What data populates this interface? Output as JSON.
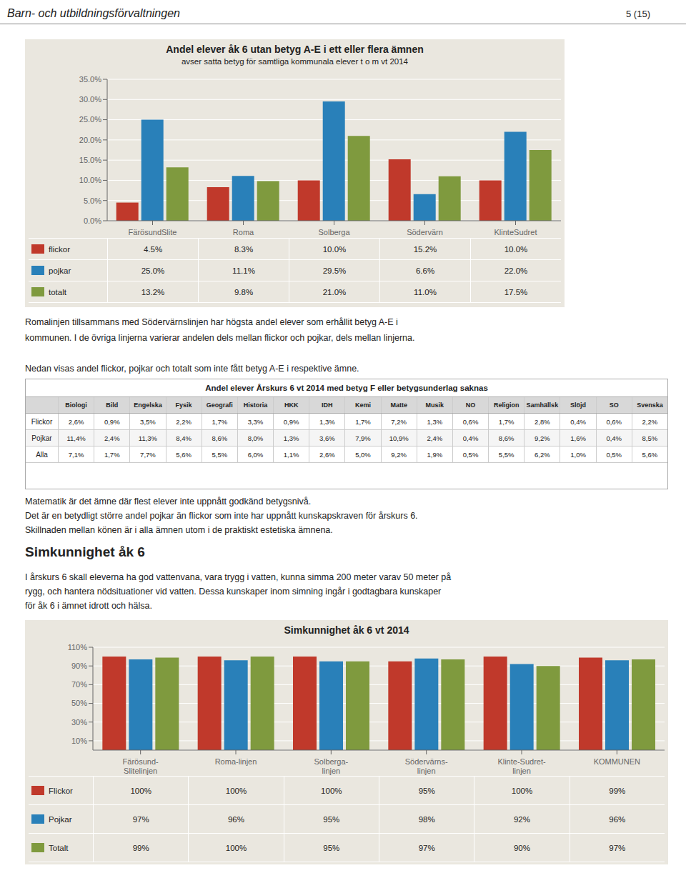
{
  "page_title": "Barn- och utbildningsförvaltningen",
  "page_number": "5 (15)",
  "text1": [
    "Romalinjen tillsammans med Södervärnslinjen har högsta andel elever som erhållit betyg A-E i",
    "kommunen. I de övriga linjerna varierar andelen dels mellan flickor och pojkar, dels mellan linjerna."
  ],
  "text2": [
    "Nedan visas andel flickor, pojkar och totalt som inte fått betyg A-E i respektive ämne."
  ],
  "text3": [
    "Matematik är det ämne där flest elever inte uppnått godkänd betygsnivå.",
    "Det är en betydligt större andel pojkar än flickor som inte har uppnått kunskapskraven för årskurs 6.",
    "Skillnaden mellan könen är i alla ämnen utom i de praktiskt estetiska ämnena."
  ],
  "section_title": "Simkunnighet åk 6",
  "text4": [
    "I årskurs 6 skall eleverna ha god vattenvana, vara trygg i vatten, kunna simma 200 meter varav 50 meter på",
    "rygg, och hantera nödsituationer vid vatten. Dessa kunskaper inom simning ingår i godtagbara kunskaper",
    "för åk 6 i ämnet idrott och hälsa."
  ],
  "chart_data": [
    {
      "type": "bar",
      "title": "Andel elever åk 6 utan betyg A-E i ett eller flera ämnen",
      "subtitle": "avser satta betyg för samtliga kommunala elever t o m vt 2014",
      "categories": [
        "FärösundSlite",
        "Roma",
        "Solberga",
        "Södervärn",
        "KlinteSudret"
      ],
      "series": [
        {
          "name": "flickor",
          "color": "#C0392B",
          "values": [
            4.5,
            8.3,
            10.0,
            15.2,
            10.0
          ],
          "value_labels": [
            "4.5%",
            "8.3%",
            "10.0%",
            "15.2%",
            "10.0%"
          ]
        },
        {
          "name": "pojkar",
          "color": "#2980B9",
          "values": [
            25.0,
            11.1,
            29.5,
            6.6,
            22.0
          ],
          "value_labels": [
            "25.0%",
            "11.1%",
            "29.5%",
            "6.6%",
            "22.0%"
          ]
        },
        {
          "name": "totalt",
          "color": "#7F9A3E",
          "values": [
            13.2,
            9.8,
            21.0,
            11.0,
            17.5
          ],
          "value_labels": [
            "13.2%",
            "9.8%",
            "21.0%",
            "11.0%",
            "17.5%"
          ]
        }
      ],
      "ylim": [
        0,
        35
      ],
      "yticks": [
        {
          "value": 0,
          "label": "0.0%"
        },
        {
          "value": 5,
          "label": "5.0%"
        },
        {
          "value": 10,
          "label": "10.0%"
        },
        {
          "value": 15,
          "label": "15.0%"
        },
        {
          "value": 20,
          "label": "20.0%"
        },
        {
          "value": 25,
          "label": "25.0%"
        },
        {
          "value": 30,
          "label": "30.0%"
        },
        {
          "value": 35,
          "label": "35.0%"
        }
      ],
      "grid": true
    },
    {
      "type": "table",
      "title": "Andel elever Årskurs 6 vt 2014 med betyg F eller betygsunderlag saknas",
      "columns": [
        "Biologi",
        "Bild",
        "Engelska",
        "Fysik",
        "Geografi",
        "Historia",
        "HKK",
        "IDH",
        "Kemi",
        "Matte",
        "Musik",
        "NO",
        "Religion",
        "Samhällsk",
        "Slöjd",
        "SO",
        "Svenska"
      ],
      "rows": [
        {
          "name": "Flickor",
          "values": [
            "2,6%",
            "0,9%",
            "3,5%",
            "2,2%",
            "1,7%",
            "3,3%",
            "0,9%",
            "1,3%",
            "1,7%",
            "7,2%",
            "1,3%",
            "0,6%",
            "1,7%",
            "2,8%",
            "0,4%",
            "0,6%",
            "2,2%"
          ]
        },
        {
          "name": "Pojkar",
          "values": [
            "11,4%",
            "2,4%",
            "11,3%",
            "8,4%",
            "8,6%",
            "8,0%",
            "1,3%",
            "3,6%",
            "7,9%",
            "10,9%",
            "2,4%",
            "0,4%",
            "8,6%",
            "9,2%",
            "1,6%",
            "0,4%",
            "8,5%"
          ]
        },
        {
          "name": "Alla",
          "values": [
            "7,1%",
            "1,7%",
            "7,7%",
            "5,6%",
            "5,5%",
            "6,0%",
            "1,1%",
            "2,6%",
            "5,0%",
            "9,2%",
            "1,9%",
            "0,5%",
            "5,5%",
            "6,2%",
            "1,0%",
            "0,5%",
            "5,6%"
          ]
        }
      ]
    },
    {
      "type": "bar",
      "title": "Simkunnighet åk 6 vt 2014",
      "categories": [
        "Färösund-\nSlitelinjen",
        "Roma-linjen",
        "Solberga-\nlinjen",
        "Södervärns-\nlinjen",
        "Klinte-Sudret-\nlinjen",
        "KOMMUNEN"
      ],
      "series": [
        {
          "name": "Flickor",
          "color": "#C0392B",
          "values": [
            100,
            100,
            100,
            95,
            100,
            99
          ],
          "value_labels": [
            "100%",
            "100%",
            "100%",
            "95%",
            "100%",
            "99%"
          ]
        },
        {
          "name": "Pojkar",
          "color": "#2980B9",
          "values": [
            97,
            96,
            95,
            98,
            92,
            96
          ],
          "value_labels": [
            "97%",
            "96%",
            "95%",
            "98%",
            "92%",
            "96%"
          ]
        },
        {
          "name": "Totalt",
          "color": "#7F9A3E",
          "values": [
            99,
            100,
            95,
            97,
            90,
            97
          ],
          "value_labels": [
            "99%",
            "100%",
            "95%",
            "97%",
            "90%",
            "97%"
          ]
        }
      ],
      "ylim": [
        0,
        110
      ],
      "yticks": [
        {
          "value": 10,
          "label": "10%"
        },
        {
          "value": 30,
          "label": "30%"
        },
        {
          "value": 50,
          "label": "50%"
        },
        {
          "value": 70,
          "label": "70%"
        },
        {
          "value": 90,
          "label": "90%"
        },
        {
          "value": 110,
          "label": "110%"
        }
      ],
      "grid": true
    }
  ]
}
